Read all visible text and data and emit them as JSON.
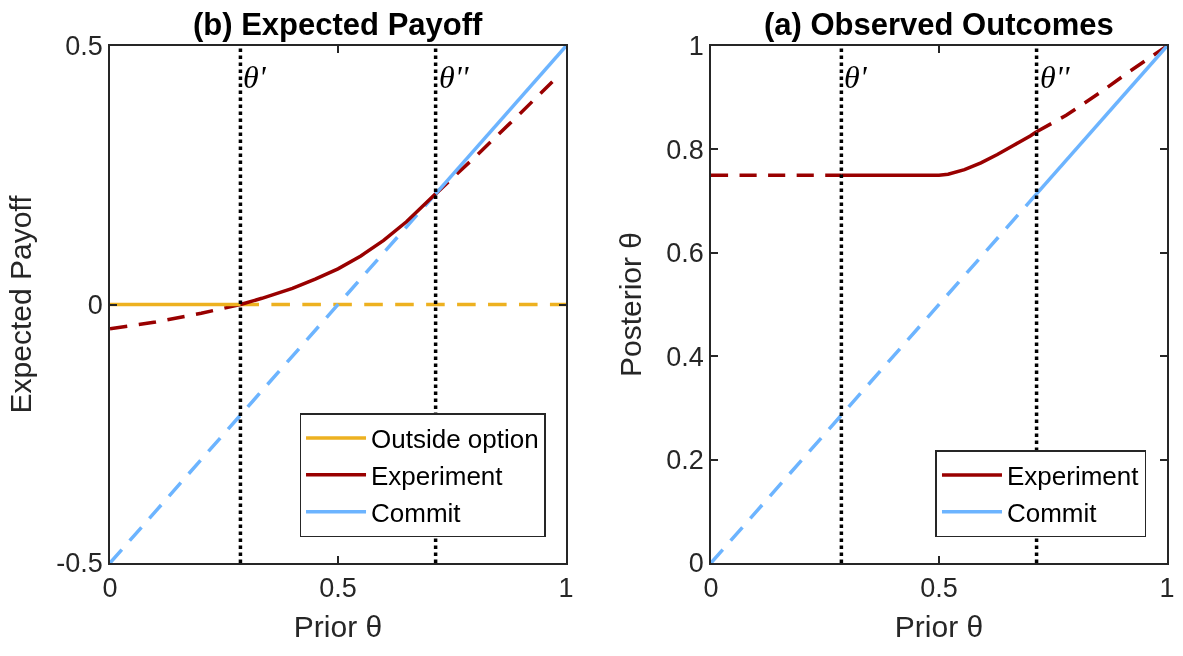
{
  "chart_data": [
    {
      "type": "line",
      "title": "(b) Expected Payoff",
      "xlabel": "Prior θ",
      "ylabel": "Expected Payoff",
      "xlim": [
        0,
        1
      ],
      "ylim": [
        -0.5,
        0.5
      ],
      "xticks": [
        0,
        0.5,
        1
      ],
      "yticks": [
        -0.5,
        0,
        0.5
      ],
      "legend": "bottom right",
      "series": [
        {
          "color": "#edb120",
          "line_style": "dashed",
          "x": [
            0.286,
            1
          ],
          "values": [
            0,
            0
          ]
        },
        {
          "color": "#990000",
          "line_style": "dashed",
          "x": [
            0,
            0.1,
            0.2,
            0.286
          ],
          "values": [
            -0.047,
            -0.034,
            -0.017,
            0
          ]
        },
        {
          "color": "#990000",
          "line_style": "dashed",
          "x": [
            0.714,
            0.8,
            0.9,
            0.97
          ],
          "values": [
            0.214,
            0.285,
            0.37,
            0.431
          ]
        },
        {
          "color": "#6cb4ff",
          "line_style": "dashed",
          "x": [
            0,
            0.714
          ],
          "values": [
            -0.5,
            0.214
          ]
        },
        {
          "name": "Outside option",
          "color": "#edb120",
          "line_style": "solid",
          "x": [
            0,
            0.286
          ],
          "values": [
            0,
            0
          ]
        },
        {
          "name": "Experiment",
          "color": "#990000",
          "line_style": "solid",
          "x": [
            0.286,
            0.333,
            0.4,
            0.45,
            0.5,
            0.55,
            0.6,
            0.65,
            0.714
          ],
          "values": [
            0,
            0.012,
            0.031,
            0.049,
            0.069,
            0.094,
            0.124,
            0.16,
            0.214
          ]
        },
        {
          "name": "Commit",
          "color": "#6cb4ff",
          "line_style": "solid",
          "x": [
            0.714,
            1
          ],
          "values": [
            0.214,
            0.5
          ]
        }
      ],
      "ref_lines": [
        {
          "axis": "x",
          "value": 0.286,
          "label": "θ'",
          "color": "#000000",
          "line_style": "dotted"
        },
        {
          "axis": "x",
          "value": 0.714,
          "label": "θ''",
          "color": "#000000",
          "line_style": "dotted"
        }
      ]
    },
    {
      "type": "line",
      "title": "(a) Observed Outcomes",
      "xlabel": "Prior θ",
      "ylabel": "Posterior θ",
      "xlim": [
        0,
        1
      ],
      "ylim": [
        0,
        1
      ],
      "xticks": [
        0,
        0.5,
        1
      ],
      "yticks": [
        0,
        0.2,
        0.4,
        0.6,
        0.8,
        1
      ],
      "legend": "bottom right",
      "series": [
        {
          "color": "#990000",
          "line_style": "dashed",
          "x": [
            0,
            0.286
          ],
          "values": [
            0.75,
            0.75
          ]
        },
        {
          "color": "#990000",
          "line_style": "dashed",
          "x": [
            0.714,
            0.779,
            0.85,
            0.92,
            1
          ],
          "values": [
            0.834,
            0.866,
            0.908,
            0.952,
            1
          ]
        },
        {
          "color": "#6cb4ff",
          "line_style": "dashed",
          "x": [
            0,
            0.714
          ],
          "values": [
            0,
            0.714
          ]
        },
        {
          "name": "Experiment",
          "color": "#990000",
          "line_style": "solid",
          "x": [
            0.286,
            0.5,
            0.52,
            0.556,
            0.592,
            0.628,
            0.664,
            0.7,
            0.714
          ],
          "values": [
            0.75,
            0.75,
            0.752,
            0.761,
            0.774,
            0.79,
            0.808,
            0.826,
            0.834
          ]
        },
        {
          "name": "Commit",
          "color": "#6cb4ff",
          "line_style": "solid",
          "x": [
            0.714,
            1
          ],
          "values": [
            0.714,
            1
          ]
        }
      ],
      "ref_lines": [
        {
          "axis": "x",
          "value": 0.286,
          "label": "θ'",
          "color": "#000000",
          "line_style": "dotted"
        },
        {
          "axis": "x",
          "value": 0.714,
          "label": "θ''",
          "color": "#000000",
          "line_style": "dotted"
        }
      ]
    }
  ]
}
